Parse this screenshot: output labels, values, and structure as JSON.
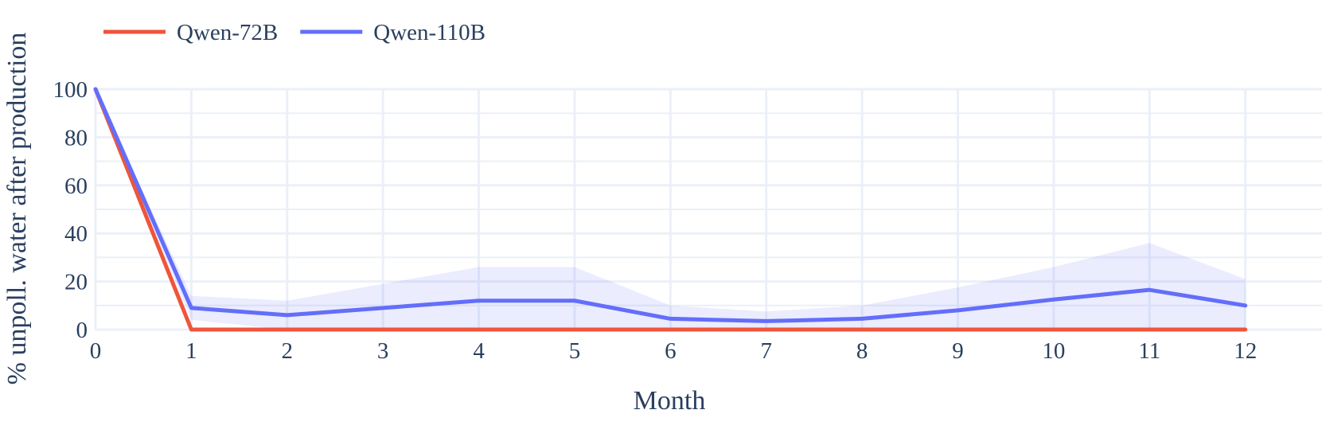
{
  "chart_data": {
    "type": "line",
    "xlabel": "Month",
    "ylabel": "% unpoll. water after production",
    "x": [
      0,
      1,
      2,
      3,
      4,
      5,
      6,
      7,
      8,
      9,
      10,
      11,
      12
    ],
    "xlim": [
      0,
      12.8
    ],
    "ylim": [
      0,
      100
    ],
    "xticks": [
      0,
      1,
      2,
      3,
      4,
      5,
      6,
      7,
      8,
      9,
      10,
      11,
      12
    ],
    "yticks": [
      0,
      20,
      40,
      60,
      80,
      100
    ],
    "grid": true,
    "legend_position": "top-left",
    "series": [
      {
        "name": "Qwen-72B",
        "color": "#ef553b",
        "values": [
          100,
          0,
          0,
          0,
          0,
          0,
          0,
          0,
          0,
          0,
          0,
          0,
          0
        ]
      },
      {
        "name": "Qwen-110B",
        "color": "#636efa",
        "values": [
          100,
          9,
          6,
          9,
          12,
          12,
          4.5,
          3.5,
          4.5,
          8,
          12.5,
          16.5,
          10
        ],
        "band_upper": [
          100,
          14,
          12,
          19,
          26,
          26,
          10,
          7.5,
          10,
          17.5,
          26,
          36,
          21
        ],
        "band_lower": [
          100,
          4,
          0,
          0,
          0,
          0,
          0,
          0,
          0,
          0,
          0,
          0,
          0
        ],
        "band_color": "#636efa"
      }
    ]
  }
}
